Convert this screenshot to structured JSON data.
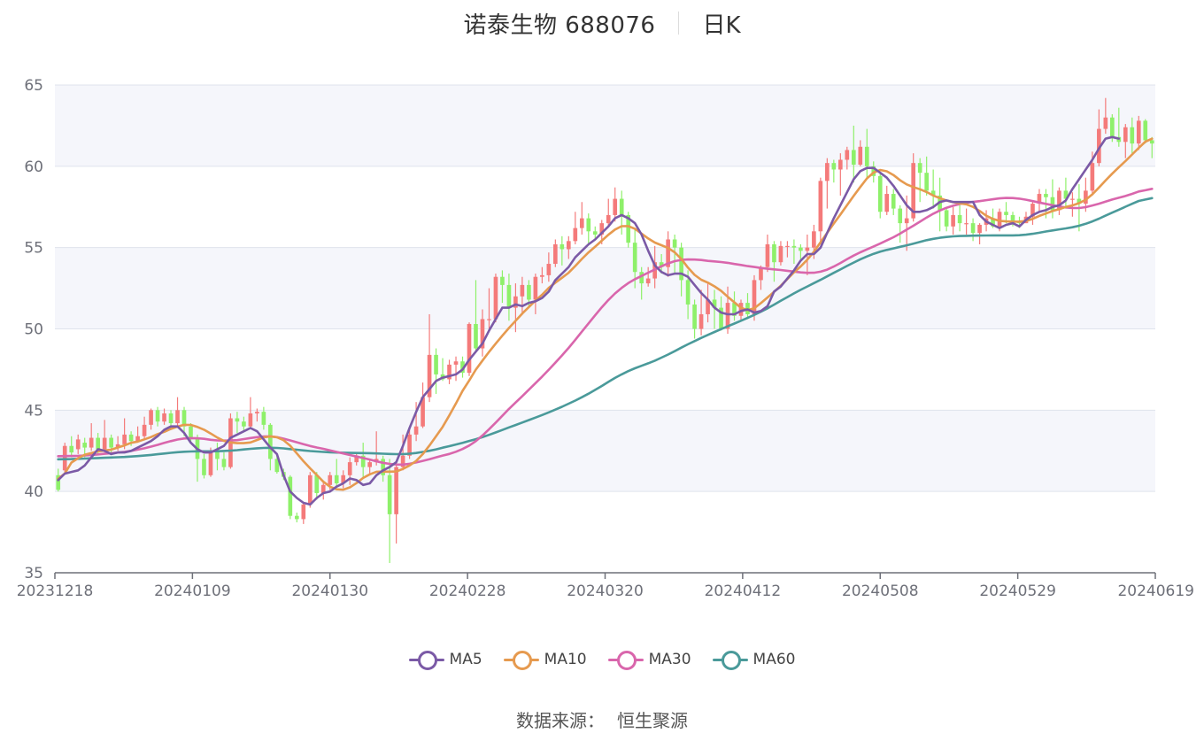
{
  "header": {
    "title": "诺泰生物 688076",
    "subtitle": "日K"
  },
  "footer": {
    "source_label": "数据来源：",
    "source_name": "恒生聚源"
  },
  "colors": {
    "up": "#f47a7a",
    "down": "#8ef06a",
    "ma5": "#7b5aa6",
    "ma10": "#e69a4f",
    "ma30": "#d966ac",
    "ma60": "#4a9a9a",
    "grid": "#dfe3ec",
    "band": "#f5f6fb",
    "axis": "#6e7079"
  },
  "chart_data": {
    "type": "candlestick",
    "title": "诺泰生物 688076",
    "subtitle": "日K",
    "ylim": [
      35,
      65
    ],
    "y_ticks": [
      35,
      40,
      45,
      50,
      55,
      60,
      65
    ],
    "x_tick_labels": [
      "20231218",
      "20240109",
      "20240130",
      "20240228",
      "20240320",
      "20240412",
      "20240508",
      "20240529",
      "20240619"
    ],
    "legend": [
      "MA5",
      "MA10",
      "MA30",
      "MA60"
    ],
    "legend_placement": "bottom-center",
    "grid": true,
    "candles": [
      [
        41.0,
        40.1,
        41.4,
        40.0
      ],
      [
        41.3,
        42.8,
        43.0,
        41.2
      ],
      [
        42.8,
        42.4,
        43.4,
        42.1
      ],
      [
        42.6,
        43.2,
        43.5,
        42.3
      ],
      [
        43.0,
        42.7,
        43.3,
        42.1
      ],
      [
        42.7,
        43.3,
        44.2,
        42.5
      ],
      [
        43.3,
        42.6,
        43.6,
        42.3
      ],
      [
        42.6,
        43.3,
        44.4,
        42.4
      ],
      [
        43.3,
        42.7,
        43.5,
        42.4
      ],
      [
        42.7,
        42.9,
        43.4,
        42.5
      ],
      [
        42.9,
        43.5,
        44.5,
        42.6
      ],
      [
        43.5,
        43.1,
        43.7,
        42.8
      ],
      [
        43.1,
        43.4,
        44.0,
        43.0
      ],
      [
        43.4,
        44.1,
        44.6,
        43.2
      ],
      [
        44.1,
        45.0,
        45.1,
        43.8
      ],
      [
        45.0,
        44.3,
        45.2,
        44.0
      ],
      [
        44.3,
        44.8,
        45.1,
        44.1
      ],
      [
        44.8,
        44.2,
        45.0,
        43.9
      ],
      [
        44.2,
        45.0,
        45.8,
        44.0
      ],
      [
        45.0,
        44.0,
        45.2,
        43.4
      ],
      [
        44.0,
        43.3,
        44.2,
        43.0
      ],
      [
        43.3,
        42.0,
        43.5,
        40.6
      ],
      [
        42.0,
        41.0,
        42.3,
        40.8
      ],
      [
        41.0,
        42.5,
        42.7,
        40.9
      ],
      [
        42.5,
        42.0,
        43.0,
        41.3
      ],
      [
        42.0,
        41.5,
        42.4,
        41.3
      ],
      [
        41.5,
        44.5,
        44.8,
        41.4
      ],
      [
        44.5,
        44.3,
        44.9,
        43.6
      ],
      [
        44.3,
        44.0,
        44.6,
        43.7
      ],
      [
        44.0,
        44.8,
        45.8,
        43.9
      ],
      [
        44.8,
        44.9,
        45.1,
        44.3
      ],
      [
        44.9,
        44.1,
        45.2,
        43.8
      ],
      [
        44.1,
        42.0,
        44.2,
        41.3
      ],
      [
        42.0,
        41.2,
        42.3,
        41.1
      ],
      [
        41.2,
        40.9,
        41.4,
        40.7
      ],
      [
        40.9,
        38.5,
        41.0,
        38.3
      ],
      [
        38.5,
        38.3,
        38.7,
        38.1
      ],
      [
        38.3,
        39.2,
        39.3,
        38.0
      ],
      [
        39.2,
        41.0,
        41.2,
        39.0
      ],
      [
        41.0,
        39.9,
        41.2,
        39.5
      ],
      [
        39.9,
        40.4,
        40.6,
        39.5
      ],
      [
        40.4,
        41.0,
        41.2,
        40.1
      ],
      [
        41.0,
        40.5,
        42.0,
        40.3
      ],
      [
        40.5,
        41.0,
        41.3,
        40.2
      ],
      [
        41.0,
        41.8,
        42.1,
        40.4
      ],
      [
        41.8,
        42.2,
        42.3,
        41.6
      ],
      [
        42.2,
        41.5,
        43.0,
        40.8
      ],
      [
        41.5,
        41.8,
        42.0,
        41.0
      ],
      [
        41.8,
        42.0,
        43.7,
        41.6
      ],
      [
        42.0,
        41.0,
        42.2,
        40.6
      ],
      [
        41.0,
        38.6,
        42.0,
        35.6
      ],
      [
        38.6,
        41.5,
        41.8,
        36.8
      ],
      [
        41.5,
        42.2,
        43.5,
        41.3
      ],
      [
        42.2,
        43.5,
        44.0,
        42.0
      ],
      [
        43.5,
        44.0,
        45.5,
        43.1
      ],
      [
        44.0,
        45.8,
        46.7,
        43.9
      ],
      [
        45.8,
        48.4,
        50.9,
        45.5
      ],
      [
        48.4,
        47.2,
        48.8,
        46.0
      ],
      [
        47.2,
        46.9,
        48.2,
        46.8
      ],
      [
        46.9,
        47.8,
        48.1,
        46.6
      ],
      [
        47.8,
        48.0,
        48.3,
        46.8
      ],
      [
        48.0,
        47.3,
        48.3,
        47.0
      ],
      [
        47.3,
        50.3,
        50.4,
        47.1
      ],
      [
        50.3,
        48.8,
        53.0,
        48.6
      ],
      [
        48.8,
        50.6,
        51.2,
        48.3
      ],
      [
        50.6,
        50.6,
        52.5,
        49.8
      ],
      [
        50.6,
        53.2,
        53.4,
        50.4
      ],
      [
        53.2,
        52.7,
        53.6,
        51.6
      ],
      [
        52.7,
        51.3,
        53.4,
        50.5
      ],
      [
        51.3,
        52.0,
        52.8,
        49.8
      ],
      [
        52.0,
        52.7,
        53.2,
        50.9
      ],
      [
        52.7,
        51.8,
        53.0,
        51.3
      ],
      [
        51.8,
        53.2,
        53.4,
        50.9
      ],
      [
        53.2,
        53.3,
        53.8,
        52.8
      ],
      [
        53.3,
        54.0,
        54.7,
        52.9
      ],
      [
        54.0,
        55.2,
        55.5,
        53.8
      ],
      [
        55.2,
        54.9,
        55.7,
        53.9
      ],
      [
        54.9,
        55.4,
        55.7,
        54.3
      ],
      [
        55.4,
        56.2,
        57.2,
        55.2
      ],
      [
        56.2,
        56.8,
        57.8,
        55.8
      ],
      [
        56.8,
        56.0,
        57.1,
        55.2
      ],
      [
        56.0,
        55.8,
        56.3,
        55.5
      ],
      [
        55.8,
        56.5,
        56.7,
        55.2
      ],
      [
        56.5,
        57.0,
        58.0,
        56.3
      ],
      [
        57.0,
        58.0,
        58.7,
        56.6
      ],
      [
        58.0,
        57.0,
        58.5,
        55.8
      ],
      [
        57.0,
        55.3,
        57.2,
        55.0
      ],
      [
        55.3,
        53.5,
        56.1,
        52.5
      ],
      [
        53.5,
        52.8,
        53.8,
        51.8
      ],
      [
        52.8,
        53.1,
        53.8,
        52.6
      ],
      [
        53.1,
        54.1,
        55.1,
        52.5
      ],
      [
        54.1,
        53.8,
        54.6,
        53.4
      ],
      [
        53.8,
        55.5,
        56.0,
        53.2
      ],
      [
        55.5,
        55.0,
        55.8,
        53.4
      ],
      [
        55.0,
        53.0,
        55.3,
        52.0
      ],
      [
        53.0,
        51.5,
        53.6,
        50.6
      ],
      [
        51.5,
        50.0,
        51.8,
        49.4
      ],
      [
        50.0,
        50.9,
        52.4,
        49.6
      ],
      [
        50.9,
        51.8,
        52.8,
        50.4
      ],
      [
        51.8,
        51.3,
        52.4,
        50.0
      ],
      [
        51.3,
        50.0,
        52.0,
        49.9
      ],
      [
        50.0,
        51.6,
        52.6,
        49.7
      ],
      [
        51.6,
        50.8,
        52.3,
        50.5
      ],
      [
        50.8,
        51.6,
        51.8,
        50.5
      ],
      [
        51.6,
        50.9,
        52.2,
        50.6
      ],
      [
        50.9,
        53.0,
        53.3,
        50.5
      ],
      [
        53.0,
        53.8,
        53.9,
        52.4
      ],
      [
        53.8,
        55.2,
        55.8,
        53.5
      ],
      [
        55.2,
        54.1,
        55.4,
        52.9
      ],
      [
        54.1,
        55.1,
        55.4,
        53.9
      ],
      [
        55.1,
        55.1,
        55.4,
        54.4
      ],
      [
        55.1,
        55.0,
        55.5,
        54.0
      ],
      [
        55.0,
        54.8,
        55.2,
        54.2
      ],
      [
        54.8,
        55.0,
        55.8,
        53.3
      ],
      [
        55.0,
        56.0,
        56.4,
        54.3
      ],
      [
        56.0,
        59.1,
        59.3,
        55.2
      ],
      [
        59.1,
        60.2,
        60.5,
        57.4
      ],
      [
        60.2,
        59.8,
        60.4,
        59.0
      ],
      [
        59.8,
        60.4,
        60.8,
        58.2
      ],
      [
        60.4,
        61.0,
        61.2,
        59.8
      ],
      [
        61.0,
        60.1,
        62.5,
        59.0
      ],
      [
        60.1,
        61.2,
        61.6,
        60.0
      ],
      [
        61.2,
        60.0,
        62.3,
        59.3
      ],
      [
        60.0,
        59.4,
        60.3,
        59.0
      ],
      [
        59.4,
        57.2,
        59.6,
        56.8
      ],
      [
        57.2,
        58.3,
        58.8,
        57.0
      ],
      [
        58.3,
        57.4,
        58.6,
        57.0
      ],
      [
        57.4,
        56.5,
        57.6,
        55.3
      ],
      [
        56.5,
        56.8,
        58.2,
        54.8
      ],
      [
        56.8,
        60.2,
        60.8,
        56.6
      ],
      [
        60.2,
        59.6,
        60.5,
        57.8
      ],
      [
        59.6,
        58.5,
        60.6,
        58.2
      ],
      [
        58.5,
        58.2,
        59.8,
        57.4
      ],
      [
        58.2,
        57.3,
        59.3,
        56.0
      ],
      [
        57.3,
        56.3,
        57.5,
        56.0
      ],
      [
        56.3,
        57.0,
        57.5,
        55.8
      ],
      [
        57.0,
        56.5,
        57.6,
        56.0
      ],
      [
        56.5,
        56.5,
        57.4,
        55.8
      ],
      [
        56.5,
        55.9,
        56.8,
        55.4
      ],
      [
        55.9,
        56.4,
        56.5,
        55.2
      ],
      [
        56.4,
        56.8,
        57.3,
        56.0
      ],
      [
        56.8,
        56.3,
        57.4,
        56.2
      ],
      [
        56.3,
        57.2,
        57.4,
        56.0
      ],
      [
        57.2,
        57.0,
        57.8,
        56.5
      ],
      [
        57.0,
        56.6,
        57.2,
        56.3
      ],
      [
        56.6,
        56.5,
        56.9,
        56.2
      ],
      [
        56.5,
        56.9,
        57.2,
        56.5
      ],
      [
        56.9,
        57.7,
        57.9,
        56.4
      ],
      [
        57.7,
        58.3,
        58.6,
        57.2
      ],
      [
        58.3,
        58.1,
        58.6,
        56.8
      ],
      [
        58.1,
        57.3,
        59.2,
        56.8
      ],
      [
        57.3,
        58.5,
        58.7,
        57.0
      ],
      [
        58.5,
        58.0,
        59.3,
        57.4
      ],
      [
        58.0,
        58.0,
        58.4,
        56.9
      ],
      [
        58.0,
        57.7,
        58.9,
        56.0
      ],
      [
        57.7,
        58.5,
        59.3,
        57.2
      ],
      [
        58.5,
        60.2,
        60.9,
        58.2
      ],
      [
        60.2,
        62.3,
        63.5,
        60.0
      ],
      [
        62.3,
        63.0,
        64.2,
        62.0
      ],
      [
        63.0,
        61.8,
        63.2,
        61.5
      ],
      [
        61.8,
        61.5,
        63.6,
        61.2
      ],
      [
        61.5,
        62.4,
        62.6,
        60.5
      ],
      [
        62.4,
        61.4,
        63.0,
        60.8
      ],
      [
        61.4,
        62.8,
        63.1,
        61.0
      ],
      [
        62.8,
        61.6,
        62.9,
        61.4
      ],
      [
        61.6,
        61.4,
        61.8,
        60.5
      ]
    ],
    "ma": {
      "MA5": [
        40.7,
        41.1,
        41.2,
        41.3,
        41.6,
        42.1,
        42.6,
        42.5,
        42.3,
        42.4,
        42.4,
        42.5,
        42.7,
        42.9,
        43.1,
        43.4,
        43.8,
        44.0,
        44.0,
        43.6,
        43.0,
        42.6,
        42.4,
        42.4,
        42.6,
        42.8,
        43.3,
        43.5,
        43.7,
        43.9,
        43.7,
        43.2,
        42.7,
        42.3,
        41.0,
        40.0,
        39.6,
        39.3,
        39.2,
        39.6,
        39.9,
        40.0,
        40.3,
        40.5,
        40.8,
        40.7,
        40.4,
        40.5,
        41.0,
        41.3,
        41.5,
        41.8,
        42.8,
        43.9,
        44.9,
        45.8,
        46.3,
        46.8,
        47.0,
        47.1,
        47.2,
        47.5,
        48.1,
        48.6,
        49.1,
        49.9,
        50.6,
        51.3,
        51.3,
        51.5,
        51.4,
        51.6,
        51.7,
        51.9,
        52.3,
        53.0,
        53.4,
        53.8,
        54.4,
        54.8,
        55.2,
        55.5,
        55.9,
        56.3,
        56.8,
        57.0,
        56.8,
        56.5,
        55.8,
        54.8,
        53.9,
        53.5,
        53.3,
        53.4,
        53.4,
        53.2,
        52.7,
        52.2,
        51.8,
        51.3,
        51.0,
        50.9,
        50.9,
        51.1,
        51.2,
        51.0,
        51.1,
        51.4,
        52.3,
        52.6,
        53.1,
        53.6,
        54.2,
        54.6,
        54.6,
        55.0,
        55.9,
        56.8,
        57.6,
        58.4,
        59.2,
        59.7,
        59.9,
        59.9,
        59.6,
        59.3,
        58.8,
        58.2,
        57.6,
        57.2,
        57.2,
        57.3,
        57.5,
        57.8,
        57.9,
        57.8,
        57.8,
        57.8,
        57.8,
        57.0,
        56.6,
        56.4,
        56.2,
        56.4,
        56.5,
        56.3,
        56.7,
        57.0,
        57.2,
        57.3,
        57.5,
        57.6,
        57.9,
        58.6,
        59.2,
        59.8,
        60.4,
        61.1,
        61.7,
        61.8,
        61.7
      ]
    }
  }
}
